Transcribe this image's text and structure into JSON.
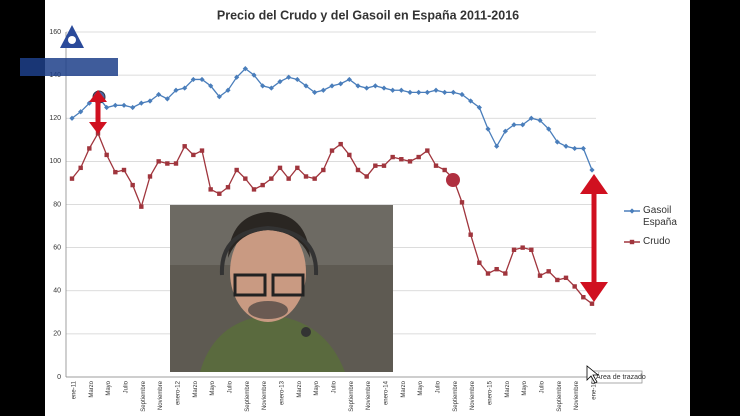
{
  "chart_data": {
    "type": "line",
    "title": "Precio del Crudo y del Gasoil en España 2011-2016",
    "categories": [
      "ene-11",
      null,
      "Marzo",
      null,
      "Mayo",
      null,
      "Julio",
      null,
      "Septiembre",
      null,
      "Noviembre",
      null,
      "enero-12",
      null,
      "Marzo",
      null,
      "Mayo",
      null,
      "Julio",
      null,
      "Septiembre",
      null,
      "Noviembre",
      null,
      "enero-13",
      null,
      "Marzo",
      null,
      "Mayo",
      null,
      "Julio",
      null,
      "Septiembre",
      null,
      "Noviembre",
      null,
      "enero-14",
      null,
      "Marzo",
      null,
      "Mayo",
      null,
      "Julio",
      null,
      "Septiembre",
      null,
      "Noviembre",
      null,
      "enero-15",
      null,
      "Marzo",
      null,
      "Mayo",
      null,
      "Julio",
      null,
      "Septiembre",
      null,
      "Noviembre",
      null,
      "ene-16"
    ],
    "series": [
      {
        "name": "Gasoil España",
        "color": "#4a7ebb",
        "marker": "diamond",
        "values": [
          120,
          123,
          127,
          130,
          125,
          126,
          126,
          125,
          127,
          128,
          131,
          129,
          133,
          134,
          138,
          138,
          135,
          130,
          133,
          139,
          143,
          140,
          135,
          134,
          137,
          139,
          138,
          135,
          132,
          133,
          135,
          136,
          138,
          135,
          134,
          135,
          134,
          133,
          133,
          132,
          132,
          132,
          133,
          132,
          132,
          131,
          128,
          125,
          115,
          107,
          114,
          117,
          117,
          120,
          119,
          115,
          109,
          107,
          106,
          106,
          96
        ]
      },
      {
        "name": "Crudo",
        "color": "#a0353d",
        "marker": "square",
        "values": [
          92,
          97,
          106,
          113,
          103,
          95,
          96,
          89,
          79,
          93,
          100,
          99,
          99,
          107,
          103,
          105,
          87,
          85,
          88,
          96,
          92,
          87,
          89,
          92,
          97,
          92,
          97,
          93,
          92,
          96,
          105,
          108,
          103,
          96,
          93,
          98,
          98,
          102,
          101,
          100,
          102,
          105,
          98,
          96,
          92,
          81,
          66,
          53,
          48,
          50,
          48,
          59,
          60,
          59,
          47,
          49,
          45,
          46,
          42,
          37,
          34
        ]
      }
    ],
    "ylim": [
      0,
      160
    ],
    "yticks": [
      0,
      20,
      40,
      60,
      80,
      100,
      120,
      140,
      160
    ],
    "grid": true,
    "legend": "right",
    "tooltip": "Área de trazado"
  }
}
